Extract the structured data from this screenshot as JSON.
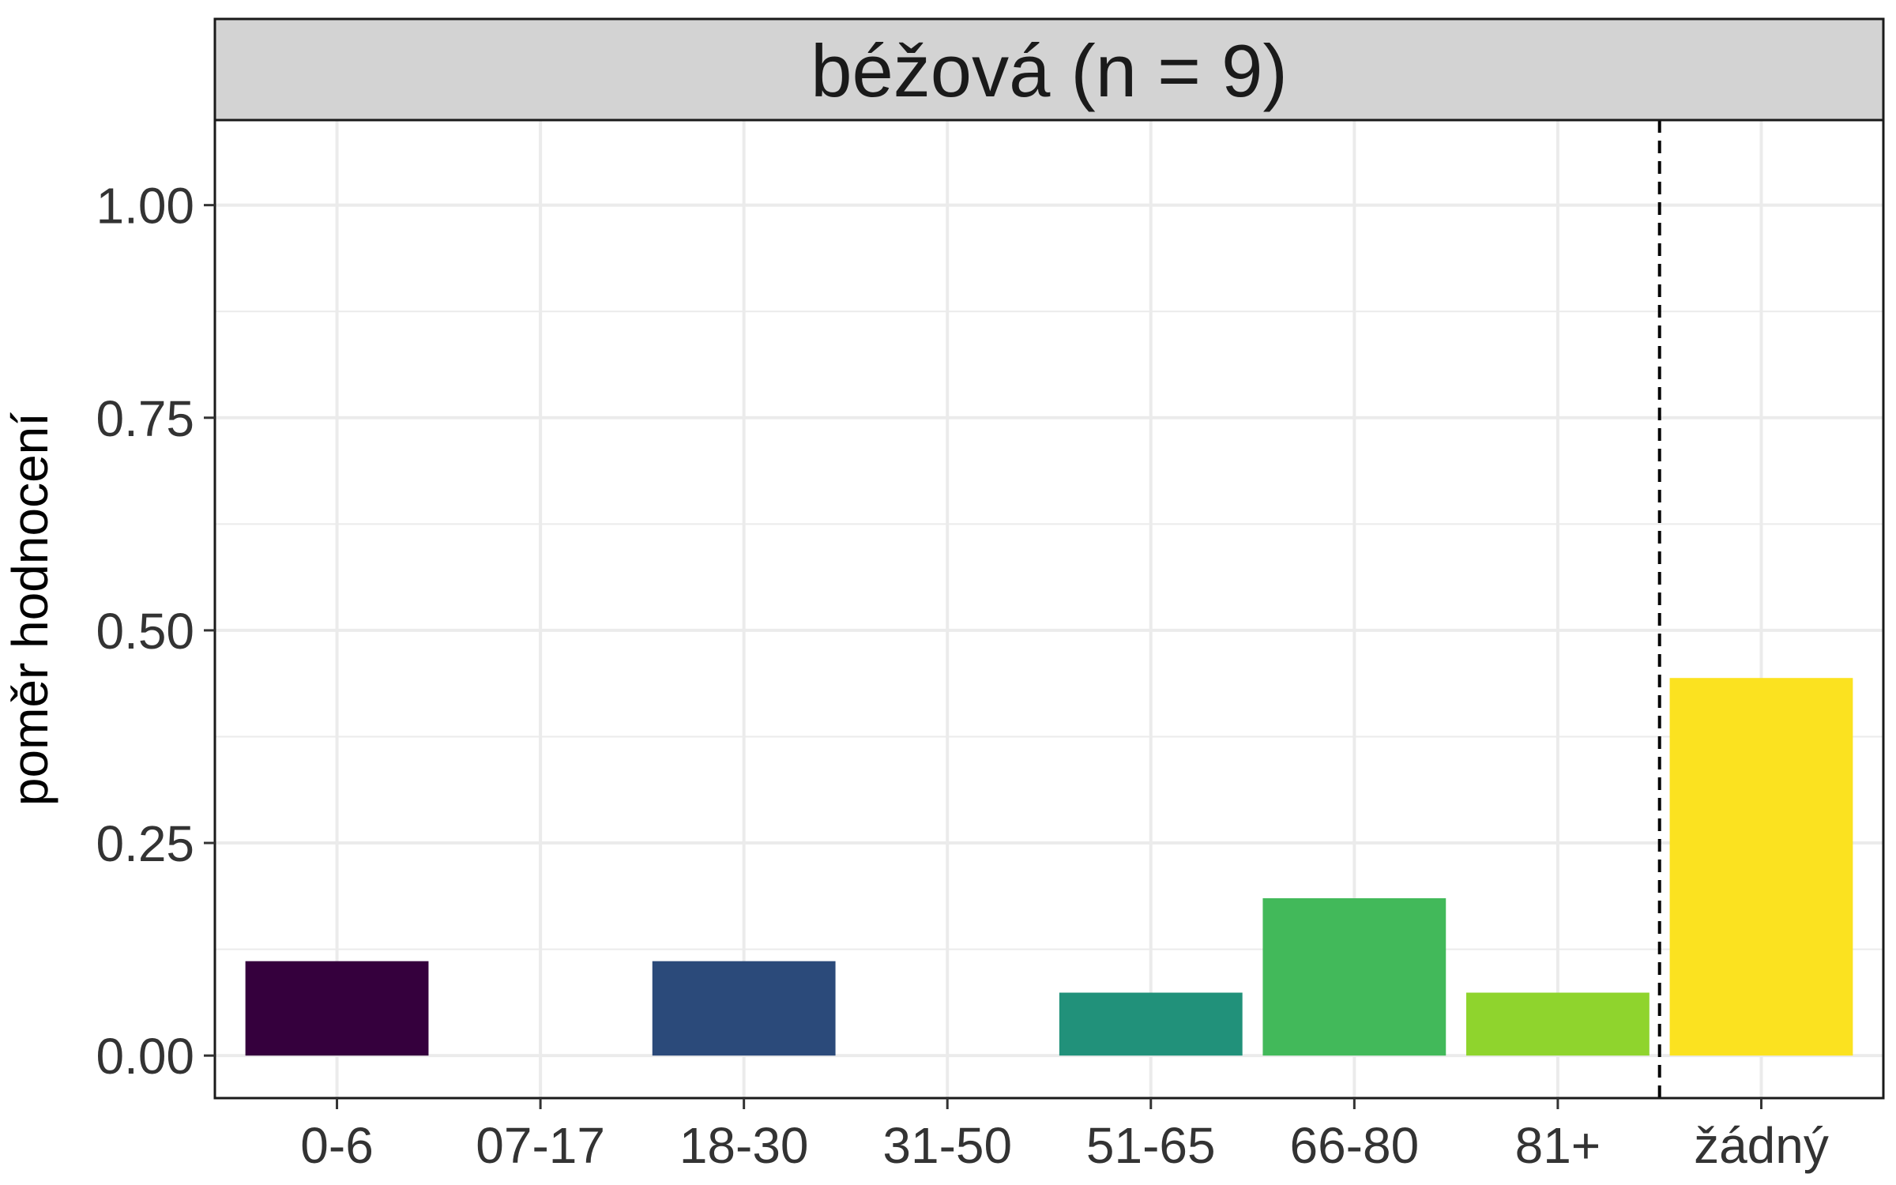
{
  "chart_data": {
    "type": "bar",
    "facet_title": "béžová (n = 9)",
    "ylabel": "poměr hodnocení",
    "xlabel": "",
    "categories": [
      "0-6",
      "07-17",
      "18-30",
      "31-50",
      "51-65",
      "66-80",
      "81+",
      "žádný"
    ],
    "values": [
      0.111,
      0,
      0.111,
      0,
      0.074,
      0.185,
      0.074,
      0.444
    ],
    "colors": [
      "#35003d",
      "#2b2f6f",
      "#2b4a7a",
      "#26647f",
      "#21917a",
      "#42b95a",
      "#8fd42d",
      "#fbe220"
    ],
    "ylim": [
      -0.05,
      1.1
    ],
    "yticks": [
      0,
      0.25,
      0.5,
      0.75,
      1
    ],
    "ytick_labels": [
      "0.00",
      "0.25",
      "0.50",
      "0.75",
      "1.00"
    ],
    "separator_after_index": 6,
    "separator_style": "dashed",
    "grid": true
  }
}
